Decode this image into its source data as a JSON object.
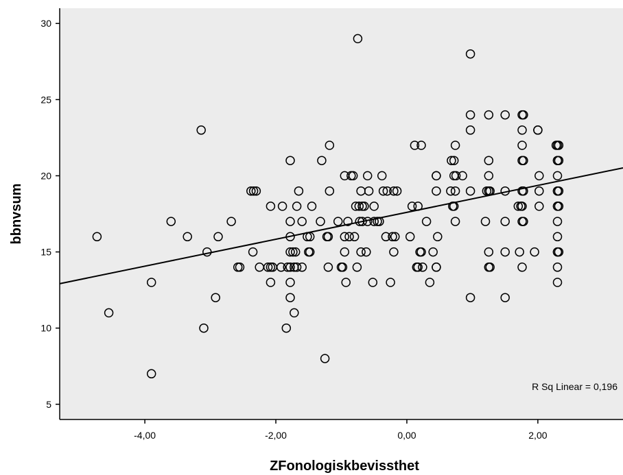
{
  "chart_data": {
    "type": "scatter",
    "title": "",
    "xlabel": "ZFonologiskbevissthet",
    "ylabel": "bbnvsum",
    "xlim": [
      -5.3,
      3.3
    ],
    "ylim": [
      4,
      31
    ],
    "x_ticks": [
      -4,
      -2,
      0,
      2
    ],
    "x_tick_labels": [
      "-4,00",
      "-2,00",
      "0,00",
      "2,00"
    ],
    "y_ticks": [
      5,
      10,
      15,
      20,
      25,
      30
    ],
    "y_tick_labels": [
      "5",
      "10",
      "15",
      "20",
      "25",
      "30"
    ],
    "grid": false,
    "background_color": "#ececec",
    "annotation": "R Sq Linear = 0,196",
    "fit_line": {
      "intercept": 17.6,
      "slope": 0.884
    },
    "points": [
      [
        -4.73,
        16
      ],
      [
        -4.55,
        11
      ],
      [
        -3.9,
        13
      ],
      [
        -3.9,
        7
      ],
      [
        -3.6,
        17
      ],
      [
        -3.35,
        16
      ],
      [
        -3.14,
        23
      ],
      [
        -3.1,
        10
      ],
      [
        -3.05,
        15
      ],
      [
        -2.92,
        12
      ],
      [
        -2.88,
        16
      ],
      [
        -2.68,
        17
      ],
      [
        -2.58,
        14
      ],
      [
        -2.55,
        14
      ],
      [
        -2.38,
        19
      ],
      [
        -2.34,
        19
      ],
      [
        -2.3,
        19
      ],
      [
        -2.35,
        15
      ],
      [
        -2.25,
        14
      ],
      [
        -2.12,
        14
      ],
      [
        -2.08,
        14
      ],
      [
        -2.08,
        18
      ],
      [
        -2.08,
        13
      ],
      [
        -2.05,
        14
      ],
      [
        -1.92,
        14
      ],
      [
        -1.9,
        18
      ],
      [
        -1.82,
        14
      ],
      [
        -1.84,
        10
      ],
      [
        -1.78,
        14
      ],
      [
        -1.78,
        15
      ],
      [
        -1.78,
        17
      ],
      [
        -1.78,
        16
      ],
      [
        -1.78,
        21
      ],
      [
        -1.78,
        12
      ],
      [
        -1.78,
        13
      ],
      [
        -1.74,
        15
      ],
      [
        -1.72,
        14
      ],
      [
        -1.72,
        11
      ],
      [
        -1.7,
        15
      ],
      [
        -1.68,
        14
      ],
      [
        -1.68,
        18
      ],
      [
        -1.65,
        19
      ],
      [
        -1.6,
        17
      ],
      [
        -1.6,
        14
      ],
      [
        -1.52,
        16
      ],
      [
        -1.5,
        15
      ],
      [
        -1.48,
        15
      ],
      [
        -1.48,
        16
      ],
      [
        -1.45,
        18
      ],
      [
        -1.32,
        17
      ],
      [
        -1.3,
        21
      ],
      [
        -1.25,
        8
      ],
      [
        -1.22,
        16
      ],
      [
        -1.2,
        16
      ],
      [
        -1.2,
        14
      ],
      [
        -1.18,
        22
      ],
      [
        -1.18,
        19
      ],
      [
        -1.05,
        17
      ],
      [
        -1.0,
        14
      ],
      [
        -0.98,
        14
      ],
      [
        -0.95,
        20
      ],
      [
        -0.95,
        15
      ],
      [
        -0.95,
        16
      ],
      [
        -0.93,
        13
      ],
      [
        -0.9,
        17
      ],
      [
        -0.88,
        16
      ],
      [
        -0.85,
        20
      ],
      [
        -0.82,
        20
      ],
      [
        -0.8,
        16
      ],
      [
        -0.78,
        18
      ],
      [
        -0.76,
        14
      ],
      [
        -0.75,
        29
      ],
      [
        -0.73,
        18
      ],
      [
        -0.72,
        17
      ],
      [
        -0.7,
        15
      ],
      [
        -0.7,
        19
      ],
      [
        -0.68,
        17
      ],
      [
        -0.68,
        18
      ],
      [
        -0.65,
        18
      ],
      [
        -0.62,
        15
      ],
      [
        -0.6,
        20
      ],
      [
        -0.6,
        17
      ],
      [
        -0.58,
        19
      ],
      [
        -0.52,
        13
      ],
      [
        -0.5,
        18
      ],
      [
        -0.5,
        17
      ],
      [
        -0.45,
        17
      ],
      [
        -0.42,
        17
      ],
      [
        -0.38,
        20
      ],
      [
        -0.36,
        19
      ],
      [
        -0.32,
        16
      ],
      [
        -0.3,
        19
      ],
      [
        -0.25,
        13
      ],
      [
        -0.22,
        16
      ],
      [
        -0.2,
        15
      ],
      [
        -0.2,
        19
      ],
      [
        -0.18,
        16
      ],
      [
        -0.15,
        19
      ],
      [
        0.05,
        16
      ],
      [
        0.08,
        18
      ],
      [
        0.12,
        22
      ],
      [
        0.15,
        14
      ],
      [
        0.17,
        18
      ],
      [
        0.17,
        14
      ],
      [
        0.2,
        15
      ],
      [
        0.22,
        22
      ],
      [
        0.22,
        15
      ],
      [
        0.24,
        14
      ],
      [
        0.3,
        17
      ],
      [
        0.35,
        13
      ],
      [
        0.4,
        15
      ],
      [
        0.45,
        20
      ],
      [
        0.45,
        20
      ],
      [
        0.45,
        19
      ],
      [
        0.45,
        14
      ],
      [
        0.45,
        14
      ],
      [
        0.47,
        16
      ],
      [
        0.67,
        19
      ],
      [
        0.68,
        21
      ],
      [
        0.7,
        18
      ],
      [
        0.72,
        18
      ],
      [
        0.72,
        20
      ],
      [
        0.72,
        21
      ],
      [
        0.74,
        17
      ],
      [
        0.74,
        22
      ],
      [
        0.74,
        19
      ],
      [
        0.75,
        20
      ],
      [
        0.85,
        20
      ],
      [
        0.97,
        28
      ],
      [
        0.97,
        24
      ],
      [
        0.97,
        23
      ],
      [
        0.97,
        19
      ],
      [
        0.97,
        12
      ],
      [
        1.2,
        17
      ],
      [
        1.22,
        19
      ],
      [
        1.25,
        19
      ],
      [
        1.25,
        24
      ],
      [
        1.25,
        21
      ],
      [
        1.25,
        20
      ],
      [
        1.25,
        15
      ],
      [
        1.25,
        14
      ],
      [
        1.27,
        14
      ],
      [
        1.27,
        19
      ],
      [
        1.5,
        24
      ],
      [
        1.5,
        19
      ],
      [
        1.5,
        17
      ],
      [
        1.5,
        15
      ],
      [
        1.5,
        12
      ],
      [
        1.7,
        18
      ],
      [
        1.72,
        15
      ],
      [
        1.74,
        18
      ],
      [
        1.76,
        24
      ],
      [
        1.76,
        23
      ],
      [
        1.76,
        22
      ],
      [
        1.76,
        21
      ],
      [
        1.76,
        19
      ],
      [
        1.76,
        18
      ],
      [
        1.76,
        17
      ],
      [
        1.76,
        14
      ],
      [
        1.78,
        24
      ],
      [
        1.78,
        21
      ],
      [
        1.78,
        19
      ],
      [
        1.78,
        17
      ],
      [
        1.95,
        15
      ],
      [
        2.0,
        23
      ],
      [
        2.02,
        20
      ],
      [
        2.02,
        19
      ],
      [
        2.02,
        18
      ],
      [
        2.0,
        23
      ],
      [
        2.28,
        22
      ],
      [
        2.3,
        22
      ],
      [
        2.3,
        21
      ],
      [
        2.3,
        21
      ],
      [
        2.3,
        20
      ],
      [
        2.3,
        19
      ],
      [
        2.3,
        19
      ],
      [
        2.3,
        18
      ],
      [
        2.3,
        18
      ],
      [
        2.3,
        17
      ],
      [
        2.3,
        16
      ],
      [
        2.3,
        15
      ],
      [
        2.3,
        15
      ],
      [
        2.3,
        14
      ],
      [
        2.3,
        13
      ],
      [
        2.32,
        22
      ],
      [
        2.32,
        21
      ],
      [
        2.32,
        19
      ],
      [
        2.32,
        18
      ],
      [
        2.32,
        15
      ]
    ]
  }
}
